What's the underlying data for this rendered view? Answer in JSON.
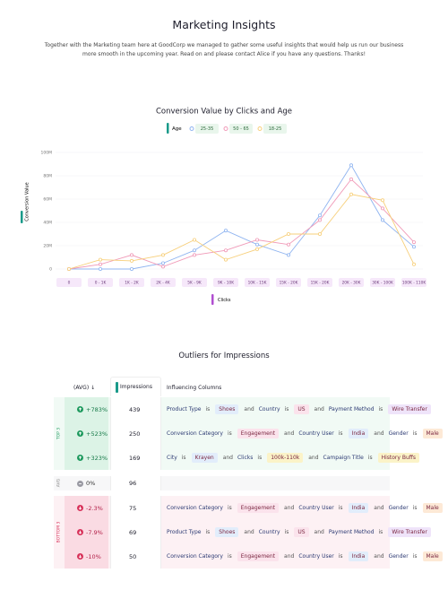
{
  "header": {
    "title": "Marketing Insights",
    "intro": "Together with the Marketing team here at GoodCorp we managed to gather some useful insights that would help us run our business more smooth in the upcoming year. Read on and please contact Alice if you have any questions. Thanks!"
  },
  "chart_data": {
    "type": "line",
    "title": "Conversion Value by Clicks and Age",
    "legend_title": "Age",
    "x_label": "Clicks",
    "y_label": "Conversion Value",
    "categories": [
      "0",
      "0 - 1K",
      "1K - 2K",
      "2K - 4K",
      "5K - 9K",
      "9K - 10K",
      "10K - 15K",
      "15K - 20K",
      "15K - 20K",
      "20K - 30K",
      "30K - 100K",
      "100K - 110K"
    ],
    "series": [
      {
        "name": "25-35",
        "color": "#8fb4f0",
        "values": [
          0,
          0,
          0,
          5000000,
          16000000,
          33000000,
          21000000,
          12000000,
          46000000,
          89000000,
          42000000,
          19000000
        ]
      },
      {
        "name": "50 - 65",
        "color": "#f09ab8",
        "values": [
          0,
          4000000,
          12000000,
          2000000,
          12000000,
          16000000,
          25000000,
          21000000,
          42000000,
          77000000,
          52000000,
          23000000
        ]
      },
      {
        "name": "18-25",
        "color": "#f7cf7a",
        "values": [
          0,
          8000000,
          7000000,
          12000000,
          25000000,
          8000000,
          17000000,
          30000000,
          30000000,
          64000000,
          59000000,
          4000000
        ]
      }
    ],
    "ylim": [
      0,
      100000000
    ],
    "yticks": [
      0,
      {
        "value": 20000000,
        "label": "20M"
      },
      {
        "value": 40000000,
        "label": "40M"
      },
      {
        "value": 60000000,
        "label": "60M"
      },
      {
        "value": 80000000,
        "label": "80M"
      },
      {
        "value": 100000000,
        "label": "100M"
      }
    ],
    "grid": true
  },
  "table": {
    "title": "Outliers for Impressions",
    "columns": [
      "(AVG) ↓",
      "Impressions",
      "Influencing Columns"
    ],
    "is": "is",
    "and": "and",
    "groups": [
      {
        "label": "TOP 3",
        "kind": "up",
        "rows": [
          {
            "change": "+783%",
            "impressions": 439,
            "conditions": [
              {
                "column": "Product Type",
                "value": "Shoes",
                "color": "#e2edfb"
              },
              {
                "column": "Country",
                "value": "US",
                "color": "#fbe3ec"
              },
              {
                "column": "Payment Method",
                "value": "Wire Transfer",
                "color": "#efe4fa"
              }
            ]
          },
          {
            "change": "+523%",
            "impressions": 250,
            "conditions": [
              {
                "column": "Conversion Category",
                "value": "Engagement",
                "color": "#fbe3ec"
              },
              {
                "column": "Country User",
                "value": "India",
                "color": "#e2edfb"
              },
              {
                "column": "Gender",
                "value": "Male",
                "color": "#fde9d6"
              }
            ]
          },
          {
            "change": "+323%",
            "impressions": 169,
            "conditions": [
              {
                "column": "City",
                "value": "Krayen",
                "color": "#e2edfb"
              },
              {
                "column": "Clicks",
                "value": "100k-110k",
                "color": "#fbf3c8"
              },
              {
                "column": "Campaign Title",
                "value": "History Buffs",
                "color": "#fbf3c8"
              }
            ]
          }
        ]
      },
      {
        "label": "AVG",
        "kind": "avg",
        "rows": [
          {
            "change": "0%",
            "impressions": 96,
            "conditions": []
          }
        ]
      },
      {
        "label": "BOTTOM 3",
        "kind": "down",
        "rows": [
          {
            "change": "-2.3%",
            "impressions": 75,
            "conditions": [
              {
                "column": "Conversion Category",
                "value": "Engagement",
                "color": "#fbe3ec"
              },
              {
                "column": "Country User",
                "value": "India",
                "color": "#e2edfb"
              },
              {
                "column": "Gender",
                "value": "Male",
                "color": "#fde9d6"
              }
            ]
          },
          {
            "change": "-7.9%",
            "impressions": 69,
            "conditions": [
              {
                "column": "Product Type",
                "value": "Shoes",
                "color": "#e2edfb"
              },
              {
                "column": "Country",
                "value": "US",
                "color": "#fbe3ec"
              },
              {
                "column": "Payment Method",
                "value": "Wire Transfer",
                "color": "#efe4fa"
              }
            ]
          },
          {
            "change": "-10%",
            "impressions": 50,
            "conditions": [
              {
                "column": "Conversion Category",
                "value": "Engagement",
                "color": "#fbe3ec"
              },
              {
                "column": "Country User",
                "value": "India",
                "color": "#e2edfb"
              },
              {
                "column": "Gender",
                "value": "Male",
                "color": "#fde9d6"
              }
            ]
          }
        ]
      }
    ]
  }
}
